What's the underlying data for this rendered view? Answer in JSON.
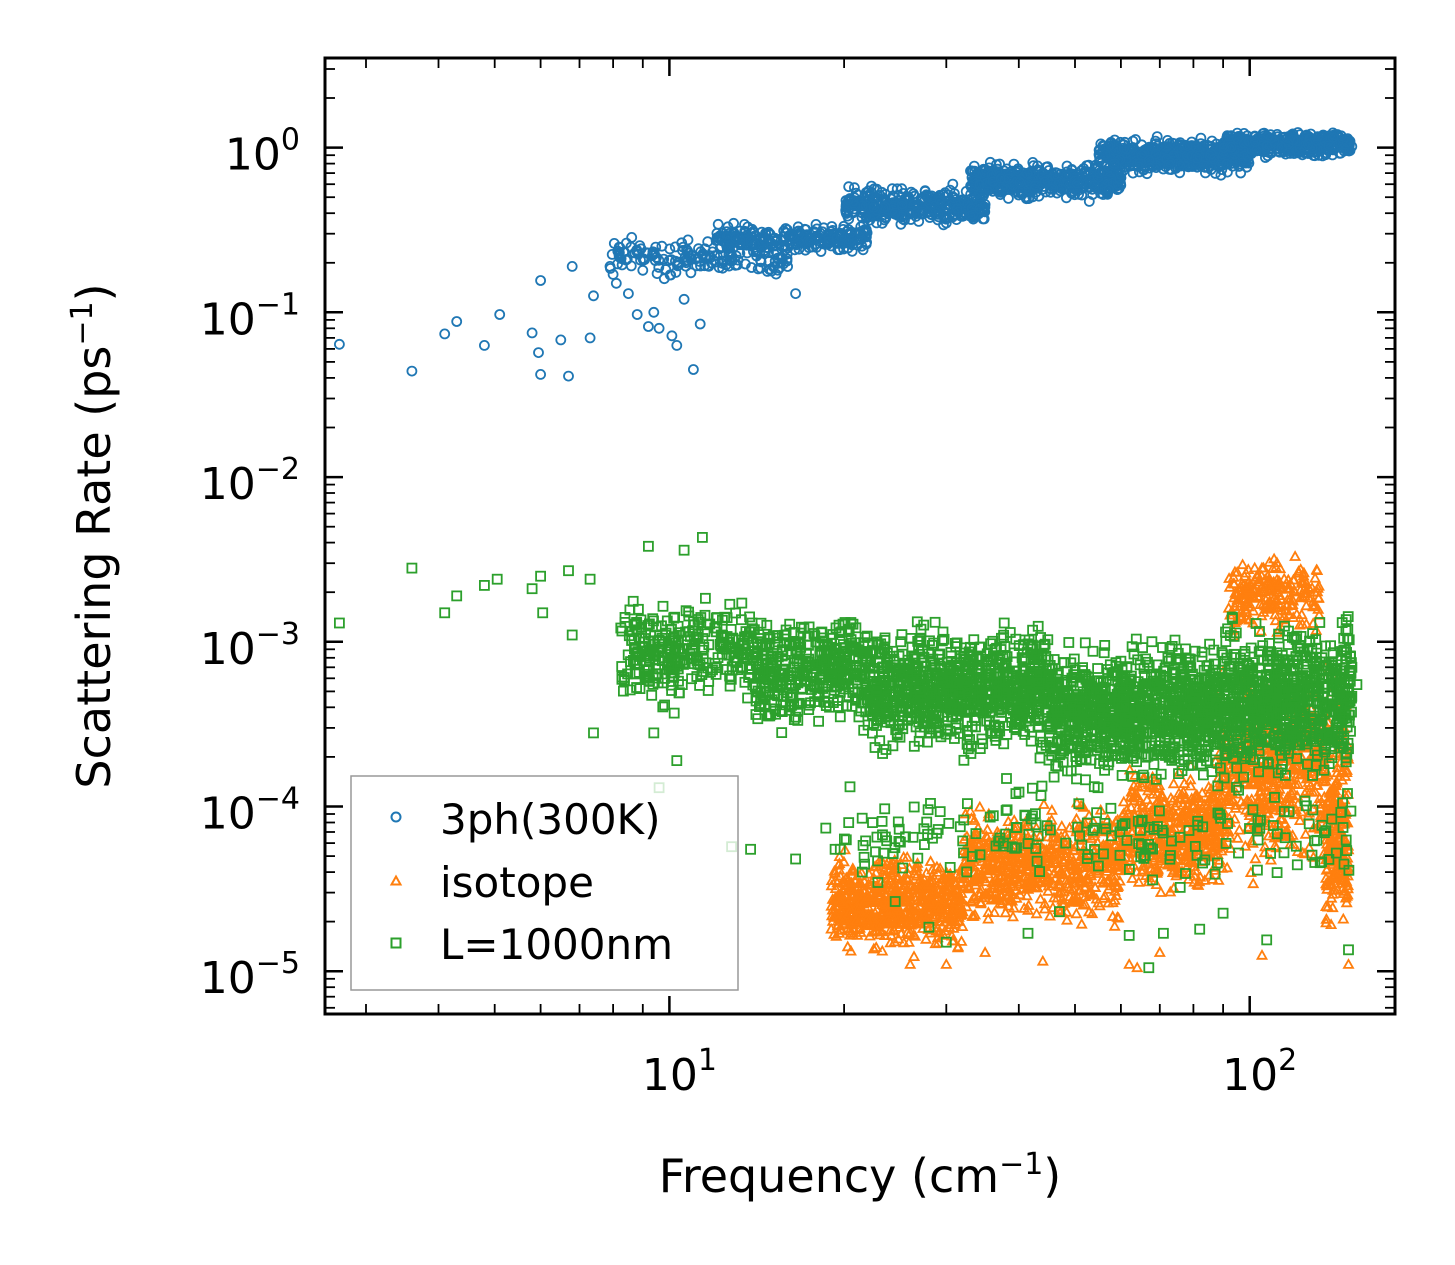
{
  "chart_data": {
    "type": "scatter",
    "xscale": "log",
    "yscale": "log",
    "xlabel": "Frequency",
    "xlabel_unit_base": "cm",
    "xlabel_unit_exp": "−1",
    "ylabel": "Scattering Rate",
    "ylabel_unit_base": "ps",
    "ylabel_unit_exp": "−1",
    "xlim": [
      2.55,
      178
    ],
    "ylim": [
      5.5e-06,
      3.5
    ],
    "x_ticks": [
      {
        "value": 10,
        "base": "10",
        "exp": "1"
      },
      {
        "value": 100,
        "base": "10",
        "exp": "2"
      }
    ],
    "y_ticks": [
      {
        "value": 1,
        "base": "10",
        "exp": "0"
      },
      {
        "value": 0.1,
        "base": "10",
        "exp": "−1"
      },
      {
        "value": 0.01,
        "base": "10",
        "exp": "−2"
      },
      {
        "value": 0.001,
        "base": "10",
        "exp": "−3"
      },
      {
        "value": 0.0001,
        "base": "10",
        "exp": "−4"
      },
      {
        "value": 1e-05,
        "base": "10",
        "exp": "−5"
      }
    ],
    "legend_position": "lower-left",
    "series": [
      {
        "name": "3ph(300K)",
        "marker": "circle",
        "color": "#1f77b4",
        "points": [
          [
            2.7,
            0.064
          ],
          [
            3.6,
            0.044
          ],
          [
            4.1,
            0.074
          ],
          [
            4.3,
            0.088
          ],
          [
            4.8,
            0.063
          ],
          [
            5.1,
            0.097
          ],
          [
            5.8,
            0.075
          ],
          [
            5.95,
            0.057
          ],
          [
            6.0,
            0.042
          ],
          [
            6.0,
            0.156
          ],
          [
            6.5,
            0.068
          ],
          [
            6.7,
            0.041
          ],
          [
            6.8,
            0.19
          ],
          [
            7.3,
            0.07
          ],
          [
            7.4,
            0.126
          ],
          [
            7.9,
            0.19
          ],
          [
            8.0,
            0.17
          ],
          [
            8.1,
            0.15
          ],
          [
            8.2,
            0.23
          ],
          [
            8.5,
            0.13
          ],
          [
            8.8,
            0.097
          ],
          [
            9.0,
            0.18
          ],
          [
            9.2,
            0.082
          ],
          [
            9.4,
            0.1
          ],
          [
            9.6,
            0.08
          ],
          [
            9.8,
            0.16
          ],
          [
            10.1,
            0.072
          ],
          [
            10.3,
            0.063
          ],
          [
            10.6,
            0.12
          ],
          [
            11.0,
            0.045
          ],
          [
            11.3,
            0.085
          ],
          [
            16.5,
            0.13
          ]
        ],
        "clusters": [
          {
            "x_from": 7.9,
            "x_to": 16,
            "y_from": 0.155,
            "y_to": 0.3,
            "count": 160
          },
          {
            "x_from": 12,
            "x_to": 22,
            "y_from": 0.22,
            "y_to": 0.36,
            "count": 260
          },
          {
            "x_from": 20,
            "x_to": 35,
            "y_from": 0.32,
            "y_to": 0.62,
            "count": 380
          },
          {
            "x_from": 33,
            "x_to": 60,
            "y_from": 0.46,
            "y_to": 0.85,
            "count": 480
          },
          {
            "x_from": 55,
            "x_to": 100,
            "y_from": 0.66,
            "y_to": 1.2,
            "count": 560
          },
          {
            "x_from": 90,
            "x_to": 150,
            "y_from": 0.85,
            "y_to": 1.3,
            "count": 420
          }
        ]
      },
      {
        "name": "isotope",
        "marker": "triangle",
        "color": "#ff7f0e",
        "points": [
          [
            26,
            1.1e-05
          ],
          [
            30,
            1.1e-05
          ],
          [
            35,
            1.3e-05
          ],
          [
            44,
            1.15e-05
          ],
          [
            62,
            1.1e-05
          ],
          [
            64,
            1.05e-05
          ],
          [
            70,
            1.3e-05
          ],
          [
            148,
            1.1e-05
          ],
          [
            105,
            1.25e-05
          ]
        ],
        "clusters": [
          {
            "x_from": 19,
            "x_to": 32,
            "y_from": 1.1e-05,
            "y_to": 6e-05,
            "count": 650
          },
          {
            "x_from": 32,
            "x_to": 60,
            "y_from": 1.6e-05,
            "y_to": 0.00012,
            "count": 650
          },
          {
            "x_from": 60,
            "x_to": 90,
            "y_from": 2.5e-05,
            "y_to": 0.00022,
            "count": 500
          },
          {
            "x_from": 88,
            "x_to": 148,
            "y_from": 3e-05,
            "y_to": 0.0009,
            "count": 650
          },
          {
            "x_from": 92,
            "x_to": 132,
            "y_from": 0.0009,
            "y_to": 0.0038,
            "count": 220
          },
          {
            "x_from": 135,
            "x_to": 148,
            "y_from": 1.6e-05,
            "y_to": 0.00012,
            "count": 140
          }
        ]
      },
      {
        "name": "L=1000nm",
        "marker": "square",
        "color": "#2ca02c",
        "points": [
          [
            2.7,
            0.0013
          ],
          [
            3.6,
            0.0028
          ],
          [
            4.1,
            0.0015
          ],
          [
            4.3,
            0.0019
          ],
          [
            4.8,
            0.0022
          ],
          [
            5.05,
            0.0024
          ],
          [
            5.8,
            0.0021
          ],
          [
            6.0,
            0.0025
          ],
          [
            6.05,
            0.0015
          ],
          [
            6.7,
            0.0027
          ],
          [
            6.8,
            0.0011
          ],
          [
            7.3,
            0.0024
          ],
          [
            7.4,
            0.00028
          ],
          [
            9.2,
            0.0038
          ],
          [
            9.4,
            0.00028
          ],
          [
            9.6,
            0.00013
          ],
          [
            10.3,
            0.00019
          ],
          [
            10.6,
            0.0036
          ],
          [
            11.4,
            0.0043
          ],
          [
            12.8,
            5.7e-05
          ],
          [
            13.8,
            5.5e-05
          ],
          [
            16.5,
            4.8e-05
          ],
          [
            18.6,
            7.4e-05
          ],
          [
            19.3,
            5.5e-05
          ],
          [
            19.7,
            5.5e-05
          ],
          [
            21.5,
            4e-05
          ],
          [
            24.5,
            2.65e-05
          ],
          [
            28,
            1.85e-05
          ],
          [
            30,
            1.5e-05
          ],
          [
            41.5,
            1.7e-05
          ],
          [
            47,
            2.3e-05
          ],
          [
            62,
            1.65e-05
          ],
          [
            67,
            1.05e-05
          ],
          [
            71,
            1.7e-05
          ],
          [
            82,
            1.8e-05
          ],
          [
            90,
            2.25e-05
          ],
          [
            107,
            1.55e-05
          ],
          [
            148,
            1.35e-05
          ],
          [
            150,
            0.0007
          ],
          [
            153,
            0.00055
          ]
        ],
        "clusters": [
          {
            "x_from": 8.2,
            "x_to": 14,
            "y_from": 0.00035,
            "y_to": 0.0022,
            "count": 300
          },
          {
            "x_from": 14,
            "x_to": 22,
            "y_from": 0.00025,
            "y_to": 0.0018,
            "count": 400
          },
          {
            "x_from": 22,
            "x_to": 45,
            "y_from": 0.00018,
            "y_to": 0.0015,
            "count": 900
          },
          {
            "x_from": 45,
            "x_to": 90,
            "y_from": 0.00012,
            "y_to": 0.0012,
            "count": 1000
          },
          {
            "x_from": 90,
            "x_to": 150,
            "y_from": 0.00012,
            "y_to": 0.0016,
            "count": 750
          },
          {
            "x_from": 20,
            "x_to": 150,
            "y_from": 3e-05,
            "y_to": 0.00016,
            "count": 200
          }
        ]
      }
    ]
  }
}
